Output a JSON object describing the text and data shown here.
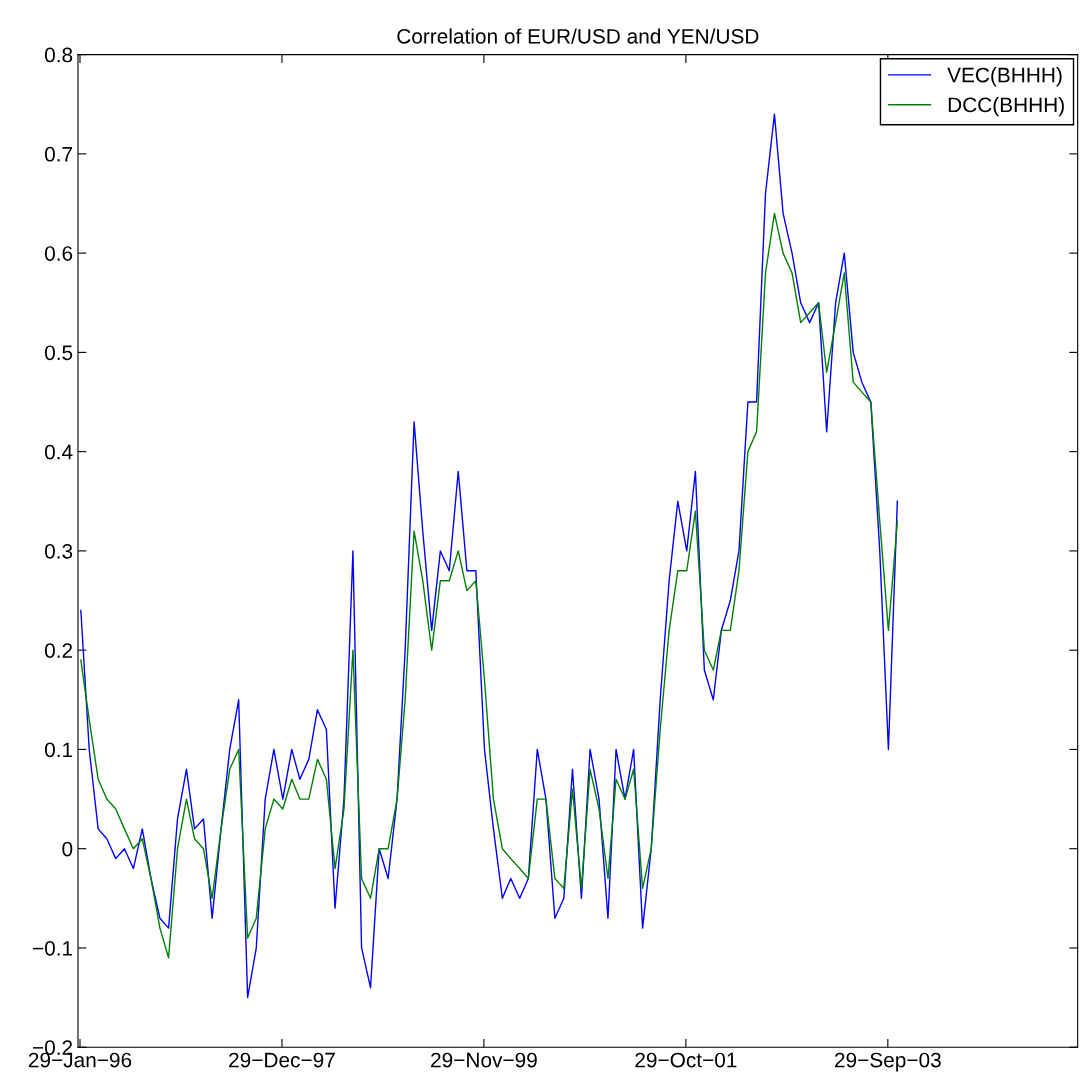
{
  "chart_data": {
    "type": "line",
    "title": "Correlation of EUR/USD and YEN/USD",
    "x": [
      "1996-02",
      "1996-03",
      "1996-04",
      "1996-05",
      "1996-06",
      "1996-07",
      "1996-08",
      "1996-09",
      "1996-10",
      "1996-11",
      "1996-12",
      "1997-01",
      "1997-02",
      "1997-03",
      "1997-04",
      "1997-05",
      "1997-06",
      "1997-07",
      "1997-08",
      "1997-09",
      "1997-10",
      "1997-11",
      "1997-12",
      "1998-01",
      "1998-02",
      "1998-03",
      "1998-04",
      "1998-05",
      "1998-06",
      "1998-07",
      "1998-08",
      "1998-09",
      "1998-10",
      "1998-11",
      "1998-12",
      "1999-01",
      "1999-02",
      "1999-03",
      "1999-04",
      "1999-05",
      "1999-06",
      "1999-07",
      "1999-08",
      "1999-09",
      "1999-10",
      "1999-11",
      "1999-12",
      "2000-01",
      "2000-02",
      "2000-03",
      "2000-04",
      "2000-05",
      "2000-06",
      "2000-07",
      "2000-08",
      "2000-09",
      "2000-10",
      "2000-11",
      "2000-12",
      "2001-01",
      "2001-02",
      "2001-03",
      "2001-04",
      "2001-05",
      "2001-06",
      "2001-07",
      "2001-08",
      "2001-09",
      "2001-10",
      "2001-11",
      "2001-12",
      "2002-01",
      "2002-02",
      "2002-03",
      "2002-04",
      "2002-05",
      "2002-06",
      "2002-07",
      "2002-08",
      "2002-09",
      "2002-10",
      "2002-11",
      "2002-12",
      "2003-01",
      "2003-02",
      "2003-03",
      "2003-04",
      "2003-05",
      "2003-06",
      "2003-07",
      "2003-08",
      "2003-09",
      "2003-10",
      "2003-11"
    ],
    "series": [
      {
        "name": "VEC(BHHH)",
        "color": "#0000ff",
        "values": [
          0.24,
          0.1,
          0.02,
          0.01,
          -0.01,
          0.0,
          -0.02,
          0.02,
          -0.03,
          -0.07,
          -0.08,
          0.03,
          0.08,
          0.02,
          0.03,
          -0.07,
          0.02,
          0.1,
          0.15,
          -0.15,
          -0.1,
          0.05,
          0.1,
          0.05,
          0.1,
          0.07,
          0.09,
          0.14,
          0.12,
          -0.06,
          0.05,
          0.3,
          -0.1,
          -0.14,
          0.0,
          -0.03,
          0.05,
          0.2,
          0.43,
          0.32,
          0.22,
          0.3,
          0.28,
          0.38,
          0.28,
          0.28,
          0.1,
          0.02,
          -0.05,
          -0.03,
          -0.05,
          -0.03,
          0.1,
          0.05,
          -0.07,
          -0.05,
          0.08,
          -0.05,
          0.1,
          0.05,
          -0.07,
          0.1,
          0.05,
          0.1,
          -0.08,
          0.0,
          0.15,
          0.27,
          0.35,
          0.3,
          0.38,
          0.18,
          0.15,
          0.22,
          0.25,
          0.3,
          0.45,
          0.45,
          0.66,
          0.74,
          0.64,
          0.6,
          0.55,
          0.53,
          0.55,
          0.42,
          0.55,
          0.6,
          0.5,
          0.47,
          0.45,
          0.3,
          0.1,
          0.35
        ]
      },
      {
        "name": "DCC(BHHH)",
        "color": "#008000",
        "values": [
          0.19,
          0.13,
          0.07,
          0.05,
          0.04,
          0.02,
          0.0,
          0.01,
          -0.03,
          -0.08,
          -0.11,
          0.0,
          0.05,
          0.01,
          0.0,
          -0.05,
          0.02,
          0.08,
          0.1,
          -0.09,
          -0.07,
          0.02,
          0.05,
          0.04,
          0.07,
          0.05,
          0.05,
          0.09,
          0.07,
          -0.02,
          0.04,
          0.2,
          -0.03,
          -0.05,
          0.0,
          0.0,
          0.05,
          0.15,
          0.32,
          0.27,
          0.2,
          0.27,
          0.27,
          0.3,
          0.26,
          0.27,
          0.17,
          0.05,
          0.0,
          -0.01,
          -0.02,
          -0.03,
          0.05,
          0.05,
          -0.03,
          -0.04,
          0.06,
          -0.04,
          0.08,
          0.04,
          -0.03,
          0.07,
          0.05,
          0.08,
          -0.04,
          0.0,
          0.12,
          0.22,
          0.28,
          0.28,
          0.34,
          0.2,
          0.18,
          0.22,
          0.22,
          0.28,
          0.4,
          0.42,
          0.58,
          0.64,
          0.6,
          0.58,
          0.53,
          0.54,
          0.55,
          0.48,
          0.53,
          0.58,
          0.47,
          0.46,
          0.45,
          0.33,
          0.22,
          0.33
        ]
      }
    ],
    "xlim": [
      "1996-01-22",
      "2005-07-18"
    ],
    "xticks": [
      {
        "value": "1996-01-29",
        "label": "29−Jan−96"
      },
      {
        "value": "1997-12-29",
        "label": "29−Dec−97"
      },
      {
        "value": "1999-11-29",
        "label": "29−Nov−99"
      },
      {
        "value": "2001-10-29",
        "label": "29−Oct−01"
      },
      {
        "value": "2003-09-29",
        "label": "29−Sep−03"
      }
    ],
    "ylim": [
      -0.2,
      0.8
    ],
    "yticks": [
      {
        "value": -0.2,
        "label": "−0.2"
      },
      {
        "value": -0.1,
        "label": "−0.1"
      },
      0,
      0.1,
      0.2,
      0.3,
      0.4,
      0.5,
      0.6,
      0.7,
      0.8
    ],
    "legend": "top right",
    "grid": false,
    "line_style": "solid",
    "marker": "none"
  }
}
